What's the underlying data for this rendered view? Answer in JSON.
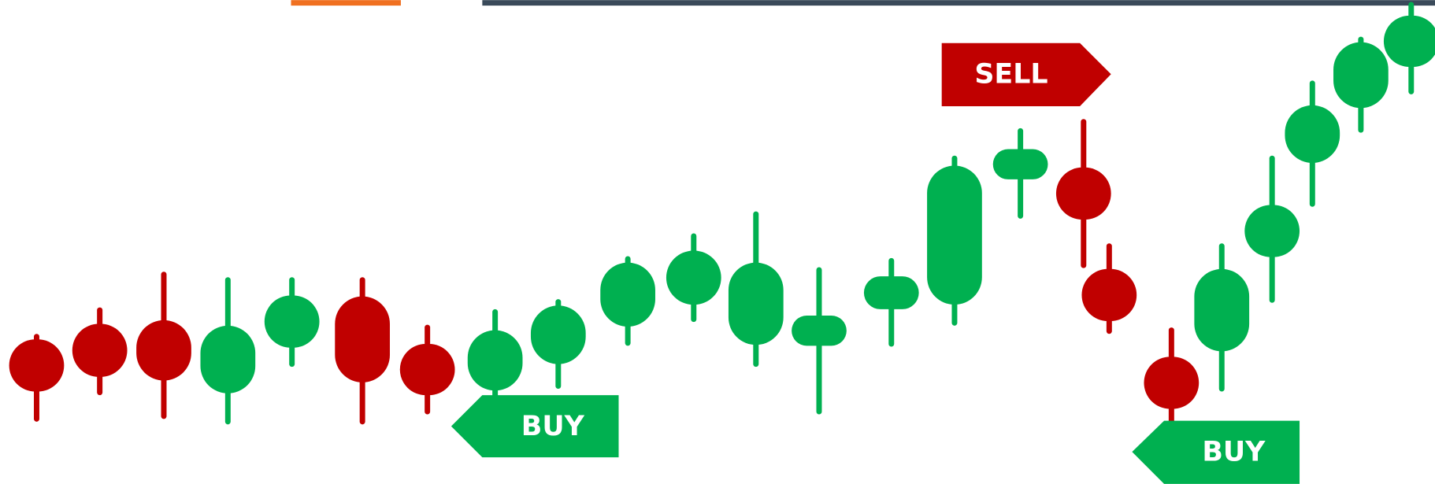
{
  "signals": {
    "sell": "SELL",
    "buy": [
      "BUY",
      "BUY"
    ]
  }
}
